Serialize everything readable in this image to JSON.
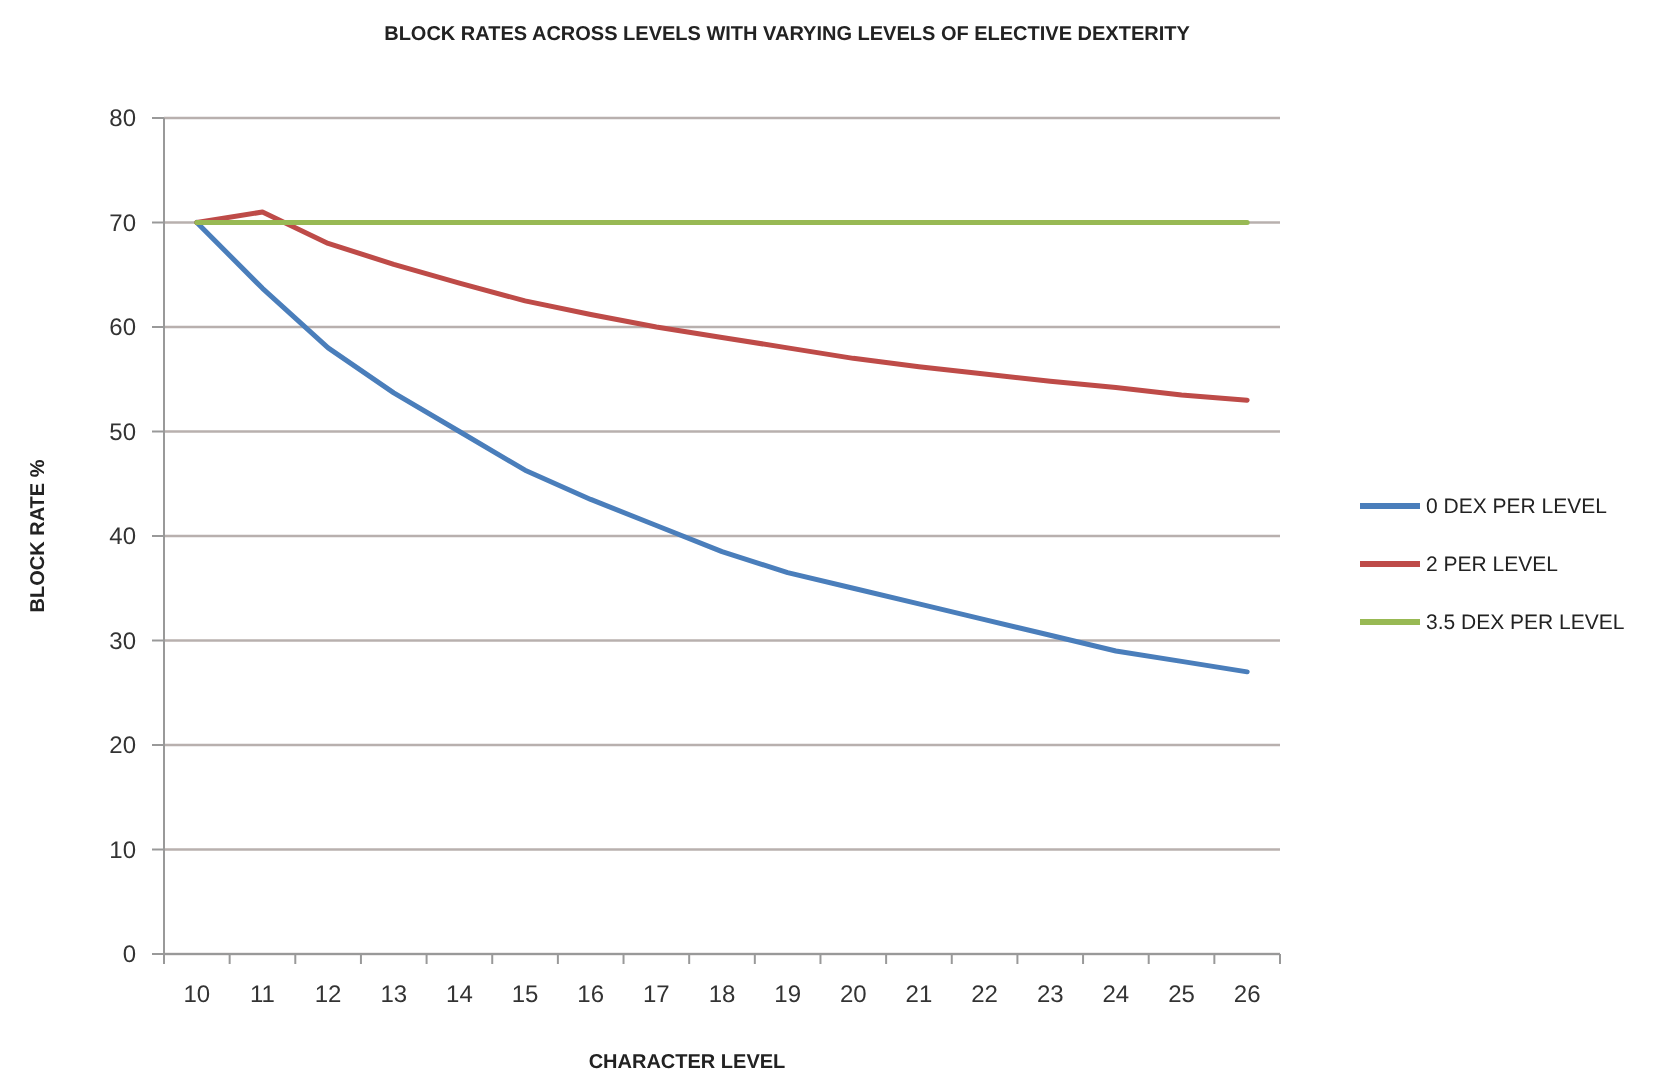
{
  "chart_data": {
    "type": "line",
    "title": "BLOCK RATES ACROSS LEVELS  WITH VARYING LEVELS OF ELECTIVE DEXTERITY",
    "xlabel": "CHARACTER LEVEL",
    "ylabel": "BLOCK RATE %",
    "categories": [
      "10",
      "11",
      "12",
      "13",
      "14",
      "15",
      "16",
      "17",
      "18",
      "19",
      "20",
      "21",
      "22",
      "23",
      "24",
      "25",
      "26"
    ],
    "series": [
      {
        "name": "0 DEX PER LEVEL",
        "color": "#4a7ebb",
        "values": [
          70,
          63.7,
          58,
          53.7,
          50,
          46.3,
          43.5,
          41,
          38.5,
          36.5,
          35,
          33.5,
          32,
          30.5,
          29,
          28,
          27
        ]
      },
      {
        "name": "2 PER LEVEL",
        "color": "#be4b48",
        "values": [
          70,
          71,
          68,
          66,
          64.2,
          62.5,
          61.2,
          60,
          59,
          58,
          57,
          56.2,
          55.5,
          54.8,
          54.2,
          53.5,
          53
        ]
      },
      {
        "name": "3.5 DEX PER LEVEL",
        "color": "#98b954",
        "values": [
          70,
          70,
          70,
          70,
          70,
          70,
          70,
          70,
          70,
          70,
          70,
          70,
          70,
          70,
          70,
          70,
          70
        ]
      }
    ],
    "ylim": [
      0,
      80
    ],
    "yticks": [
      0,
      10,
      20,
      30,
      40,
      50,
      60,
      70,
      80
    ],
    "grid": "y",
    "legend": "right",
    "marker": "none",
    "line_style": "solid"
  }
}
